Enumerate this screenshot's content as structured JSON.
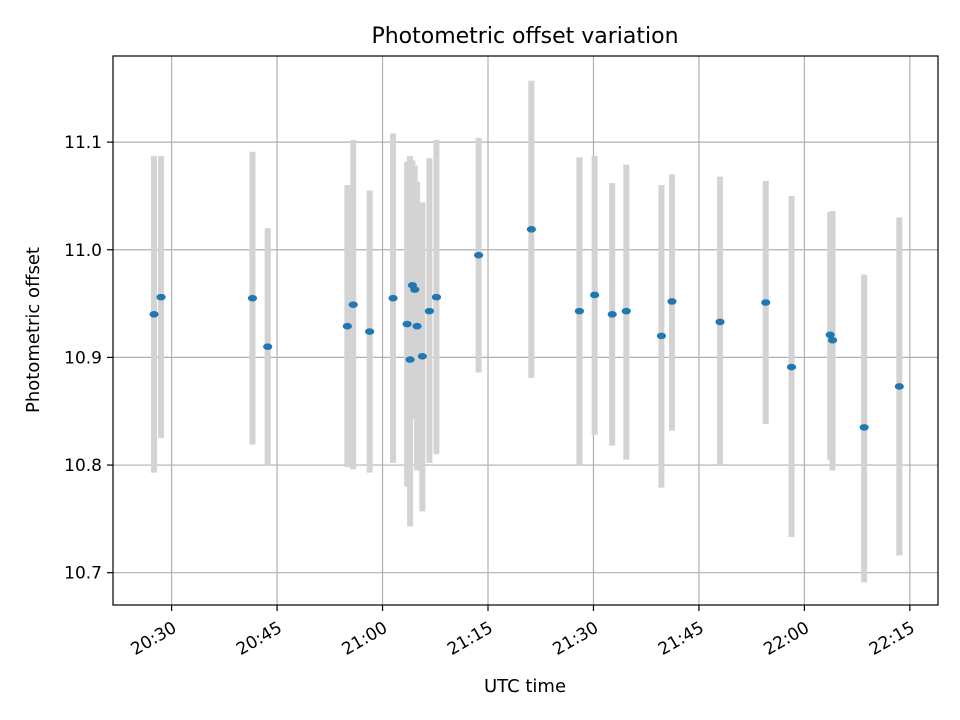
{
  "chart_data": {
    "type": "scatter",
    "title": "Photometric offset variation",
    "xlabel": "UTC time",
    "ylabel": "Photometric offset",
    "grid": true,
    "x_range": [
      "20:21:40",
      "22:19:00"
    ],
    "ylim": [
      10.67,
      11.18
    ],
    "x_ticks": [
      "20:30",
      "20:45",
      "21:00",
      "21:15",
      "21:30",
      "21:45",
      "22:00",
      "22:15"
    ],
    "y_ticks": [
      "10.7",
      "10.8",
      "10.9",
      "11.0",
      "11.1"
    ],
    "colors": {
      "point": "#1f77b4",
      "errorbar": "#d3d3d3",
      "grid": "#b0b0b0"
    },
    "points": [
      {
        "x": "20:27:30",
        "y": 10.94,
        "lo": 10.793,
        "hi": 11.087
      },
      {
        "x": "20:28:30",
        "y": 10.956,
        "lo": 10.825,
        "hi": 11.087
      },
      {
        "x": "20:41:30",
        "y": 10.955,
        "lo": 10.819,
        "hi": 11.091
      },
      {
        "x": "20:43:40",
        "y": 10.91,
        "lo": 10.8,
        "hi": 11.02
      },
      {
        "x": "20:55:00",
        "y": 10.929,
        "lo": 10.798,
        "hi": 11.06
      },
      {
        "x": "20:55:50",
        "y": 10.949,
        "lo": 10.796,
        "hi": 11.102
      },
      {
        "x": "20:58:10",
        "y": 10.924,
        "lo": 10.793,
        "hi": 11.055
      },
      {
        "x": "21:01:30",
        "y": 10.955,
        "lo": 10.802,
        "hi": 11.108
      },
      {
        "x": "21:03:30",
        "y": 10.931,
        "lo": 10.78,
        "hi": 11.082
      },
      {
        "x": "21:03:55",
        "y": 10.898,
        "lo": 10.743,
        "hi": 11.087
      },
      {
        "x": "21:04:15",
        "y": 10.967,
        "lo": 10.843,
        "hi": 11.083
      },
      {
        "x": "21:04:35",
        "y": 10.963,
        "lo": 10.843,
        "hi": 11.078
      },
      {
        "x": "21:04:55",
        "y": 10.929,
        "lo": 10.795,
        "hi": 11.063
      },
      {
        "x": "21:05:40",
        "y": 10.901,
        "lo": 10.757,
        "hi": 11.044
      },
      {
        "x": "21:06:40",
        "y": 10.943,
        "lo": 10.802,
        "hi": 11.085
      },
      {
        "x": "21:07:40",
        "y": 10.956,
        "lo": 10.81,
        "hi": 11.102
      },
      {
        "x": "21:13:40",
        "y": 10.995,
        "lo": 10.886,
        "hi": 11.104
      },
      {
        "x": "21:21:10",
        "y": 11.019,
        "lo": 10.881,
        "hi": 11.157
      },
      {
        "x": "21:28:00",
        "y": 10.943,
        "lo": 10.8,
        "hi": 11.086
      },
      {
        "x": "21:30:10",
        "y": 10.958,
        "lo": 10.828,
        "hi": 11.087
      },
      {
        "x": "21:32:40",
        "y": 10.94,
        "lo": 10.818,
        "hi": 11.062
      },
      {
        "x": "21:34:40",
        "y": 10.943,
        "lo": 10.805,
        "hi": 11.079
      },
      {
        "x": "21:39:40",
        "y": 10.92,
        "lo": 10.779,
        "hi": 11.06
      },
      {
        "x": "21:41:10",
        "y": 10.952,
        "lo": 10.832,
        "hi": 11.07
      },
      {
        "x": "21:48:00",
        "y": 10.933,
        "lo": 10.8,
        "hi": 11.068
      },
      {
        "x": "21:54:30",
        "y": 10.951,
        "lo": 10.838,
        "hi": 11.064
      },
      {
        "x": "21:58:10",
        "y": 10.891,
        "lo": 10.733,
        "hi": 11.05
      },
      {
        "x": "22:03:40",
        "y": 10.921,
        "lo": 10.805,
        "hi": 11.035
      },
      {
        "x": "22:04:00",
        "y": 10.916,
        "lo": 10.795,
        "hi": 11.036
      },
      {
        "x": "22:08:30",
        "y": 10.835,
        "lo": 10.691,
        "hi": 10.977
      },
      {
        "x": "22:13:30",
        "y": 10.873,
        "lo": 10.716,
        "hi": 11.03
      }
    ]
  }
}
